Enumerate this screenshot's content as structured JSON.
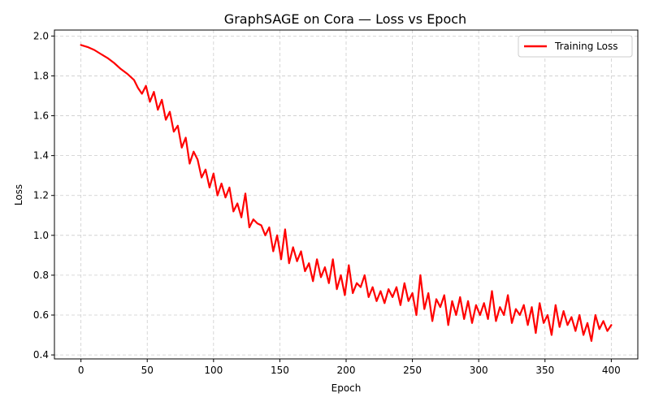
{
  "chart_data": {
    "type": "line",
    "title": "GraphSAGE on Cora — Loss vs Epoch",
    "xlabel": "Epoch",
    "ylabel": "Loss",
    "xlim": [
      -20,
      420
    ],
    "ylim": [
      0.38,
      2.03
    ],
    "x_ticks": [
      0,
      50,
      100,
      150,
      200,
      250,
      300,
      350,
      400
    ],
    "x_tick_labels": [
      "0",
      "50",
      "100",
      "150",
      "200",
      "250",
      "300",
      "350",
      "400"
    ],
    "y_ticks": [
      0.4,
      0.6,
      0.8,
      1.0,
      1.2,
      1.4,
      1.6,
      1.8,
      2.0
    ],
    "y_tick_labels": [
      "0.4",
      "0.6",
      "0.8",
      "1.0",
      "1.2",
      "1.4",
      "1.6",
      "1.8",
      "2.0"
    ],
    "grid": true,
    "legend_position": "top-right",
    "series": [
      {
        "name": "Training Loss",
        "color": "#ff0000",
        "x": [
          0,
          5,
          10,
          15,
          20,
          25,
          30,
          35,
          40,
          43,
          46,
          49,
          52,
          55,
          58,
          61,
          64,
          67,
          70,
          73,
          76,
          79,
          82,
          85,
          88,
          91,
          94,
          97,
          100,
          103,
          106,
          109,
          112,
          115,
          118,
          121,
          124,
          127,
          130,
          133,
          136,
          139,
          142,
          145,
          148,
          151,
          154,
          157,
          160,
          163,
          166,
          169,
          172,
          175,
          178,
          181,
          184,
          187,
          190,
          193,
          196,
          199,
          202,
          205,
          208,
          211,
          214,
          217,
          220,
          223,
          226,
          229,
          232,
          235,
          238,
          241,
          244,
          247,
          250,
          253,
          256,
          259,
          262,
          265,
          268,
          271,
          274,
          277,
          280,
          283,
          286,
          289,
          292,
          295,
          298,
          301,
          304,
          307,
          310,
          313,
          316,
          319,
          322,
          325,
          328,
          331,
          334,
          337,
          340,
          343,
          346,
          349,
          352,
          355,
          358,
          361,
          364,
          367,
          370,
          373,
          376,
          379,
          382,
          385,
          388,
          391,
          394,
          397,
          400
        ],
        "y": [
          1.955,
          1.945,
          1.93,
          1.91,
          1.89,
          1.865,
          1.835,
          1.81,
          1.78,
          1.74,
          1.71,
          1.75,
          1.67,
          1.72,
          1.63,
          1.68,
          1.58,
          1.62,
          1.52,
          1.55,
          1.44,
          1.49,
          1.36,
          1.42,
          1.38,
          1.29,
          1.33,
          1.24,
          1.31,
          1.2,
          1.26,
          1.19,
          1.24,
          1.12,
          1.16,
          1.09,
          1.21,
          1.04,
          1.08,
          1.06,
          1.05,
          1.0,
          1.04,
          0.92,
          1.0,
          0.88,
          1.03,
          0.86,
          0.94,
          0.87,
          0.92,
          0.82,
          0.86,
          0.77,
          0.88,
          0.79,
          0.84,
          0.76,
          0.88,
          0.73,
          0.8,
          0.7,
          0.85,
          0.71,
          0.76,
          0.74,
          0.8,
          0.69,
          0.74,
          0.67,
          0.72,
          0.66,
          0.73,
          0.69,
          0.74,
          0.65,
          0.76,
          0.67,
          0.71,
          0.6,
          0.8,
          0.63,
          0.71,
          0.57,
          0.68,
          0.64,
          0.7,
          0.55,
          0.67,
          0.6,
          0.69,
          0.58,
          0.67,
          0.56,
          0.65,
          0.6,
          0.66,
          0.58,
          0.72,
          0.57,
          0.64,
          0.6,
          0.7,
          0.56,
          0.63,
          0.6,
          0.65,
          0.55,
          0.64,
          0.51,
          0.66,
          0.56,
          0.6,
          0.5,
          0.65,
          0.54,
          0.62,
          0.55,
          0.59,
          0.52,
          0.6,
          0.5,
          0.56,
          0.47,
          0.6,
          0.53,
          0.57,
          0.52,
          0.55
        ]
      }
    ]
  }
}
